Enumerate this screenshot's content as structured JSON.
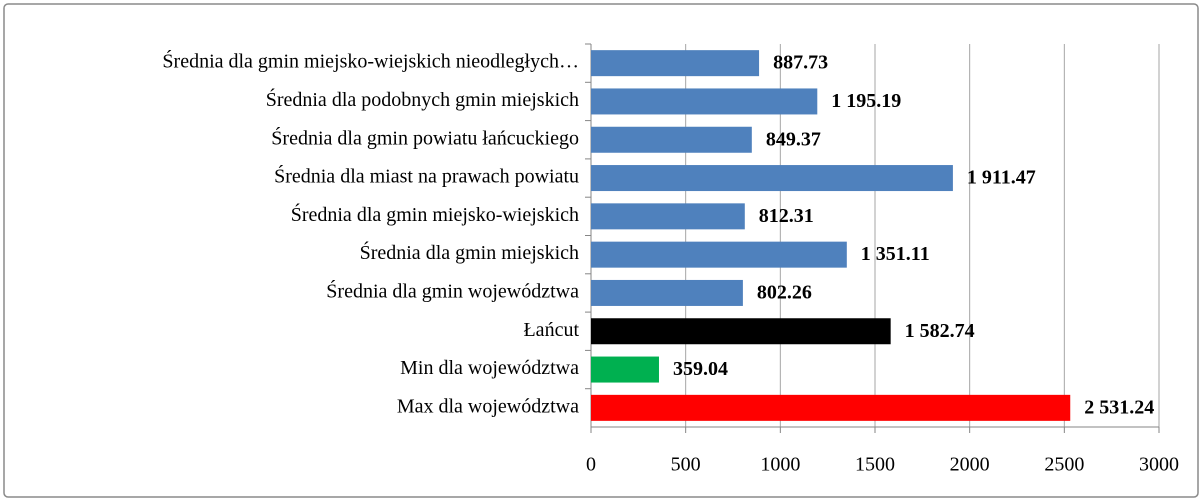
{
  "chart_data": {
    "type": "hbar",
    "categories": [
      "Średnia dla gmin miejsko-wiejskich nieodległych…",
      "Średnia dla podobnych gmin miejskich",
      "Średnia dla gmin powiatu łańcuckiego",
      "Średnia dla miast na prawach powiatu",
      "Średnia dla gmin miejsko-wiejskich",
      "Średnia dla gmin miejskich",
      "Średnia dla gmin województwa",
      "Łańcut",
      "Min dla województwa",
      "Max dla województwa"
    ],
    "values": [
      887.73,
      1195.19,
      849.37,
      1911.47,
      812.31,
      1351.11,
      802.26,
      1582.74,
      359.04,
      2531.24
    ],
    "value_labels": [
      "887.73",
      "1 195.19",
      "849.37",
      "1 911.47",
      "812.31",
      "1 351.11",
      "802.26",
      "1 582.74",
      "359.04",
      "2 531.24"
    ],
    "colors": [
      "#4f81bd",
      "#4f81bd",
      "#4f81bd",
      "#4f81bd",
      "#4f81bd",
      "#4f81bd",
      "#4f81bd",
      "#000000",
      "#00b050",
      "#ff0000"
    ],
    "xlim": [
      0,
      3000
    ],
    "xticks": [
      0,
      500,
      1000,
      1500,
      2000,
      2500,
      3000
    ],
    "grid": true
  }
}
